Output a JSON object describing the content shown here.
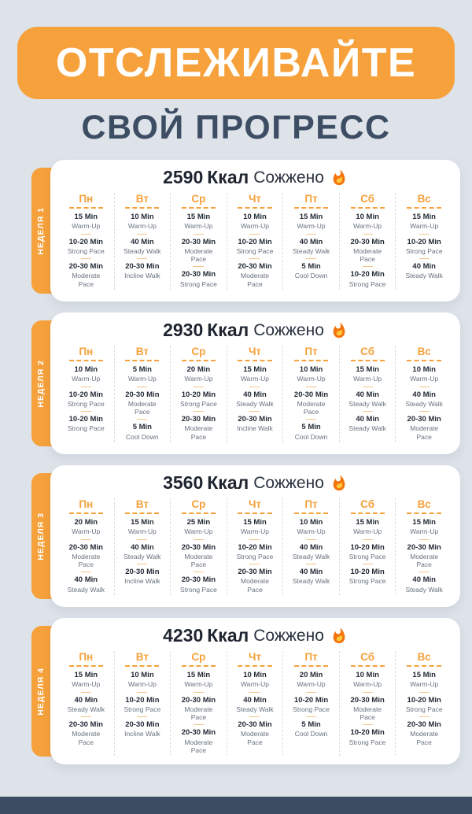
{
  "header": {
    "title": "ОТСЛЕЖИВАЙТЕ",
    "subtitle": "СВОЙ ПРОГРЕСС"
  },
  "colors": {
    "accent_orange": "#F6A13B",
    "navy": "#3D4D63",
    "background": "#DEE3EA",
    "card": "#FFFFFF",
    "text_dark": "#1F2530",
    "text_gray": "#68727F"
  },
  "icons": {
    "fire": "fire-icon"
  },
  "weeks": [
    {
      "tab": "НЕДЕЛЯ 1",
      "kcal": "2590",
      "unit": "Ккал",
      "burned_label": "Сожжено",
      "days": [
        {
          "name": "Пн",
          "activities": [
            {
              "duration": "15 Min",
              "label": "Warm-Up"
            },
            {
              "duration": "10-20 Min",
              "label": "Strong Pace"
            },
            {
              "duration": "20-30 Min",
              "label": "Moderate Pace"
            }
          ]
        },
        {
          "name": "Вт",
          "activities": [
            {
              "duration": "10 Min",
              "label": "Warm-Up"
            },
            {
              "duration": "40 Min",
              "label": "Steady Walk"
            },
            {
              "duration": "20-30 Min",
              "label": "Incline Walk"
            }
          ]
        },
        {
          "name": "Ср",
          "activities": [
            {
              "duration": "15 Min",
              "label": "Warm-Up"
            },
            {
              "duration": "20-30 Min",
              "label": "Moderate Pace"
            },
            {
              "duration": "20-30 Min",
              "label": "Strong Pace"
            }
          ]
        },
        {
          "name": "Чт",
          "activities": [
            {
              "duration": "10 Min",
              "label": "Warm-Up"
            },
            {
              "duration": "10-20 Min",
              "label": "Strong Pace"
            },
            {
              "duration": "20-30 Min",
              "label": "Moderate Pace"
            }
          ]
        },
        {
          "name": "Пт",
          "activities": [
            {
              "duration": "15 Min",
              "label": "Warm-Up"
            },
            {
              "duration": "40 Min",
              "label": "Steady Walk"
            },
            {
              "duration": "5 Min",
              "label": "Cool Down"
            }
          ]
        },
        {
          "name": "Сб",
          "activities": [
            {
              "duration": "10 Min",
              "label": "Warm-Up"
            },
            {
              "duration": "20-30 Min",
              "label": "Moderate Pace"
            },
            {
              "duration": "10-20 Min",
              "label": "Strong Pace"
            }
          ]
        },
        {
          "name": "Вс",
          "activities": [
            {
              "duration": "15 Min",
              "label": "Warm-Up"
            },
            {
              "duration": "10-20 Min",
              "label": "Strong Pace"
            },
            {
              "duration": "40 Min",
              "label": "Steady Walk"
            }
          ]
        }
      ]
    },
    {
      "tab": "НЕДЕЛЯ 2",
      "kcal": "2930",
      "unit": "Ккал",
      "burned_label": "Сожжено",
      "days": [
        {
          "name": "Пн",
          "activities": [
            {
              "duration": "10 Min",
              "label": "Warm-Up"
            },
            {
              "duration": "10-20 Min",
              "label": "Strong Pace"
            },
            {
              "duration": "10-20 Min",
              "label": "Strong Pace"
            }
          ]
        },
        {
          "name": "Вт",
          "activities": [
            {
              "duration": "5 Min",
              "label": "Warm-Up"
            },
            {
              "duration": "20-30 Min",
              "label": "Moderate Pace"
            },
            {
              "duration": "5 Min",
              "label": "Cool Down"
            }
          ]
        },
        {
          "name": "Ср",
          "activities": [
            {
              "duration": "20 Min",
              "label": "Warm-Up"
            },
            {
              "duration": "10-20 Min",
              "label": "Strong Pace"
            },
            {
              "duration": "20-30 Min",
              "label": "Moderate Pace"
            }
          ]
        },
        {
          "name": "Чт",
          "activities": [
            {
              "duration": "15 Min",
              "label": "Warm-Up"
            },
            {
              "duration": "40 Min",
              "label": "Steady Walk"
            },
            {
              "duration": "20-30 Min",
              "label": "Incline Walk"
            }
          ]
        },
        {
          "name": "Пт",
          "activities": [
            {
              "duration": "10 Min",
              "label": "Warm-Up"
            },
            {
              "duration": "20-30 Min",
              "label": "Moderate Pace"
            },
            {
              "duration": "5 Min",
              "label": "Cool Down"
            }
          ]
        },
        {
          "name": "Сб",
          "activities": [
            {
              "duration": "15 Min",
              "label": "Warm-Up"
            },
            {
              "duration": "40 Min",
              "label": "Steady Walk"
            },
            {
              "duration": "40 Min",
              "label": "Steady Walk"
            }
          ]
        },
        {
          "name": "Вс",
          "activities": [
            {
              "duration": "10 Min",
              "label": "Warm-Up"
            },
            {
              "duration": "40 Min",
              "label": "Steady Walk"
            },
            {
              "duration": "20-30 Min",
              "label": "Moderate Pace"
            }
          ]
        }
      ]
    },
    {
      "tab": "НЕДЕЛЯ 3",
      "kcal": "3560",
      "unit": "Ккал",
      "burned_label": "Сожжено",
      "days": [
        {
          "name": "Пн",
          "activities": [
            {
              "duration": "20 Min",
              "label": "Warm-Up"
            },
            {
              "duration": "20-30 Min",
              "label": "Moderate Pace"
            },
            {
              "duration": "40 Min",
              "label": "Steady Walk"
            }
          ]
        },
        {
          "name": "Вт",
          "activities": [
            {
              "duration": "15 Min",
              "label": "Warm-Up"
            },
            {
              "duration": "40 Min",
              "label": "Steady Walk"
            },
            {
              "duration": "20-30 Min",
              "label": "Incline Walk"
            }
          ]
        },
        {
          "name": "Ср",
          "activities": [
            {
              "duration": "25 Min",
              "label": "Warm-Up"
            },
            {
              "duration": "20-30 Min",
              "label": "Moderate Pace"
            },
            {
              "duration": "20-30 Min",
              "label": "Strong Pace"
            }
          ]
        },
        {
          "name": "Чт",
          "activities": [
            {
              "duration": "15 Min",
              "label": "Warm-Up"
            },
            {
              "duration": "10-20 Min",
              "label": "Strong Pace"
            },
            {
              "duration": "20-30 Min",
              "label": "Moderate Pace"
            }
          ]
        },
        {
          "name": "Пт",
          "activities": [
            {
              "duration": "10 Min",
              "label": "Warm-Up"
            },
            {
              "duration": "40 Min",
              "label": "Steady Walk"
            },
            {
              "duration": "40 Min",
              "label": "Steady Walk"
            }
          ]
        },
        {
          "name": "Сб",
          "activities": [
            {
              "duration": "15 Min",
              "label": "Warm-Up"
            },
            {
              "duration": "10-20 Min",
              "label": "Strong Pace"
            },
            {
              "duration": "10-20 Min",
              "label": "Strong Pace"
            }
          ]
        },
        {
          "name": "Вс",
          "activities": [
            {
              "duration": "15 Min",
              "label": "Warm-Up"
            },
            {
              "duration": "20-30 Min",
              "label": "Moderate Pace"
            },
            {
              "duration": "40 Min",
              "label": "Steady Walk"
            }
          ]
        }
      ]
    },
    {
      "tab": "НЕДЕЛЯ 4",
      "kcal": "4230",
      "unit": "Ккал",
      "burned_label": "Сожжено",
      "days": [
        {
          "name": "Пн",
          "activities": [
            {
              "duration": "15 Min",
              "label": "Warm-Up"
            },
            {
              "duration": "40 Min",
              "label": "Steady Walk"
            },
            {
              "duration": "20-30 Min",
              "label": "Moderate Pace"
            }
          ]
        },
        {
          "name": "Вт",
          "activities": [
            {
              "duration": "10 Min",
              "label": "Warm-Up"
            },
            {
              "duration": "10-20 Min",
              "label": "Strong Pace"
            },
            {
              "duration": "20-30 Min",
              "label": "Incline Walk"
            }
          ]
        },
        {
          "name": "Ср",
          "activities": [
            {
              "duration": "15 Min",
              "label": "Warm-Up"
            },
            {
              "duration": "20-30 Min",
              "label": "Moderate Pace"
            },
            {
              "duration": "20-30 Min",
              "label": "Moderate Pace"
            }
          ]
        },
        {
          "name": "Чт",
          "activities": [
            {
              "duration": "10 Min",
              "label": "Warm-Up"
            },
            {
              "duration": "40 Min",
              "label": "Steady Walk"
            },
            {
              "duration": "20-30 Min",
              "label": "Moderate Pace"
            }
          ]
        },
        {
          "name": "Пт",
          "activities": [
            {
              "duration": "20 Min",
              "label": "Warm-Up"
            },
            {
              "duration": "10-20 Min",
              "label": "Strong Pace"
            },
            {
              "duration": "5 Min",
              "label": "Cool Down"
            }
          ]
        },
        {
          "name": "Сб",
          "activities": [
            {
              "duration": "10 Min",
              "label": "Warm-Up"
            },
            {
              "duration": "20-30 Min",
              "label": "Moderate Pace"
            },
            {
              "duration": "10-20 Min",
              "label": "Strong Pace"
            }
          ]
        },
        {
          "name": "Вс",
          "activities": [
            {
              "duration": "15 Min",
              "label": "Warm-Up"
            },
            {
              "duration": "10-20 Min",
              "label": "Strong Pace"
            },
            {
              "duration": "20-30 Min",
              "label": "Moderate Pace"
            }
          ]
        }
      ]
    }
  ]
}
